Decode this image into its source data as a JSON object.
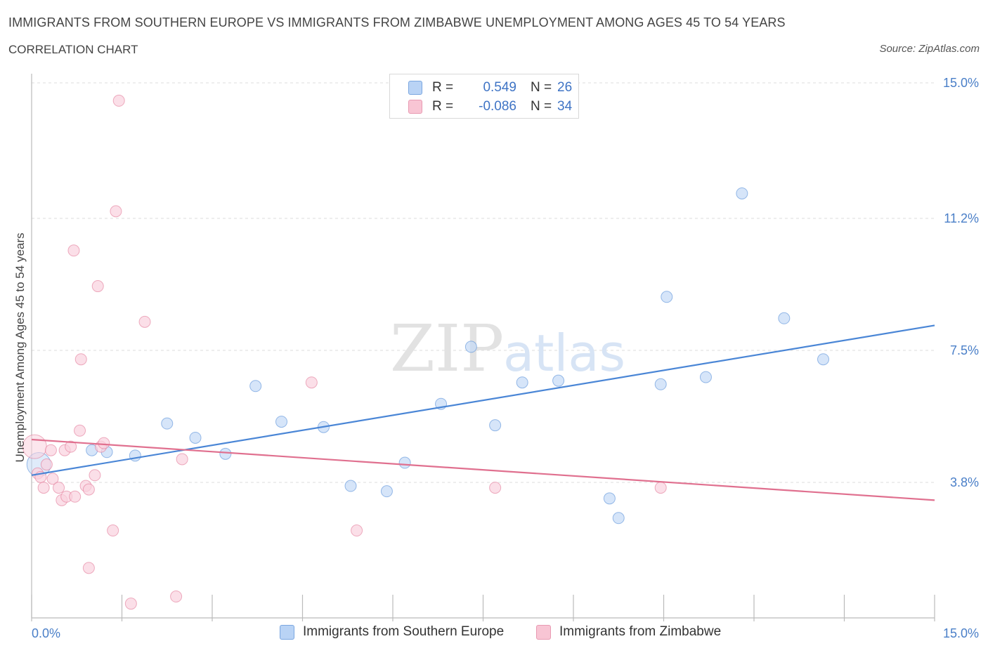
{
  "header": {
    "title": "IMMIGRANTS FROM SOUTHERN EUROPE VS IMMIGRANTS FROM ZIMBABWE UNEMPLOYMENT AMONG AGES 45 TO 54 YEARS",
    "subtitle": "CORRELATION CHART",
    "source": "Source: ZipAtlas.com"
  },
  "legend": {
    "rows": [
      {
        "r_label": "R =",
        "r_value": "0.549",
        "n_label": "N =",
        "n_value": "26",
        "color": "#b9d3f5"
      },
      {
        "r_label": "R =",
        "r_value": "-0.086",
        "n_label": "N =",
        "n_value": "34",
        "color": "#f8c5d4"
      }
    ]
  },
  "bottom_legend": [
    {
      "label": "Immigrants from Southern Europe",
      "color": "#b9d3f5"
    },
    {
      "label": "Immigrants from Zimbabwe",
      "color": "#f8c5d4"
    }
  ],
  "watermark": {
    "zip": "ZIP",
    "atlas": "atlas"
  },
  "chart_data": {
    "type": "scatter",
    "title": "IMMIGRANTS FROM SOUTHERN EUROPE VS IMMIGRANTS FROM ZIMBABWE UNEMPLOYMENT AMONG AGES 45 TO 54 YEARS",
    "xlabel": "",
    "ylabel": "Unemployment Among Ages 45 to 54 years",
    "xlim": [
      0,
      15
    ],
    "ylim": [
      0,
      15
    ],
    "x_tick_labels": [
      {
        "value": 0,
        "label": "0.0%"
      },
      {
        "value": 15,
        "label": "15.0%"
      }
    ],
    "y_tick_labels": [
      {
        "value": 3.8,
        "label": "3.8%"
      },
      {
        "value": 7.5,
        "label": "7.5%"
      },
      {
        "value": 11.2,
        "label": "11.2%"
      },
      {
        "value": 15.0,
        "label": "15.0%"
      }
    ],
    "grid": true,
    "series": [
      {
        "name": "Immigrants from Southern Europe",
        "color": "#4a86d6",
        "fill": "#c5daf6",
        "trend": {
          "x": [
            0,
            15
          ],
          "y": [
            4.0,
            8.2
          ]
        },
        "points": [
          {
            "x": 0.12,
            "y": 4.3,
            "big": true
          },
          {
            "x": 1.0,
            "y": 4.7
          },
          {
            "x": 1.25,
            "y": 4.65
          },
          {
            "x": 1.72,
            "y": 4.55
          },
          {
            "x": 2.25,
            "y": 5.45
          },
          {
            "x": 2.72,
            "y": 5.05
          },
          {
            "x": 3.22,
            "y": 4.6
          },
          {
            "x": 3.72,
            "y": 6.5
          },
          {
            "x": 4.15,
            "y": 5.5
          },
          {
            "x": 4.85,
            "y": 5.35
          },
          {
            "x": 5.3,
            "y": 3.7
          },
          {
            "x": 5.9,
            "y": 3.55
          },
          {
            "x": 6.2,
            "y": 4.35
          },
          {
            "x": 6.8,
            "y": 6.0
          },
          {
            "x": 7.3,
            "y": 7.6
          },
          {
            "x": 7.7,
            "y": 5.4
          },
          {
            "x": 8.15,
            "y": 6.6
          },
          {
            "x": 8.75,
            "y": 6.65
          },
          {
            "x": 9.6,
            "y": 3.35
          },
          {
            "x": 9.75,
            "y": 2.8
          },
          {
            "x": 10.45,
            "y": 6.55
          },
          {
            "x": 10.55,
            "y": 9.0
          },
          {
            "x": 11.2,
            "y": 6.75
          },
          {
            "x": 11.8,
            "y": 11.9
          },
          {
            "x": 12.5,
            "y": 8.4
          },
          {
            "x": 13.15,
            "y": 7.25
          }
        ]
      },
      {
        "name": "Immigrants from Zimbabwe",
        "color": "#e0708f",
        "fill": "#f9d2de",
        "trend": {
          "x": [
            0,
            15
          ],
          "y": [
            5.0,
            3.3
          ]
        },
        "points": [
          {
            "x": 0.05,
            "y": 4.8,
            "big": true
          },
          {
            "x": 0.1,
            "y": 4.05
          },
          {
            "x": 0.15,
            "y": 3.95
          },
          {
            "x": 0.2,
            "y": 3.65
          },
          {
            "x": 0.25,
            "y": 4.3
          },
          {
            "x": 0.32,
            "y": 4.7
          },
          {
            "x": 0.35,
            "y": 3.9
          },
          {
            "x": 0.45,
            "y": 3.65
          },
          {
            "x": 0.5,
            "y": 3.3
          },
          {
            "x": 0.55,
            "y": 4.7
          },
          {
            "x": 0.58,
            "y": 3.4
          },
          {
            "x": 0.65,
            "y": 4.8
          },
          {
            "x": 0.7,
            "y": 10.3
          },
          {
            "x": 0.72,
            "y": 3.4
          },
          {
            "x": 0.8,
            "y": 5.25
          },
          {
            "x": 0.82,
            "y": 7.25
          },
          {
            "x": 0.9,
            "y": 3.7
          },
          {
            "x": 0.95,
            "y": 1.4
          },
          {
            "x": 0.95,
            "y": 3.6
          },
          {
            "x": 1.05,
            "y": 4.0
          },
          {
            "x": 1.1,
            "y": 9.3
          },
          {
            "x": 1.15,
            "y": 4.8
          },
          {
            "x": 1.2,
            "y": 4.9
          },
          {
            "x": 1.35,
            "y": 2.45
          },
          {
            "x": 1.4,
            "y": 11.4
          },
          {
            "x": 1.45,
            "y": 14.5
          },
          {
            "x": 1.65,
            "y": 0.4
          },
          {
            "x": 1.88,
            "y": 8.3
          },
          {
            "x": 2.4,
            "y": 0.6
          },
          {
            "x": 2.5,
            "y": 4.45
          },
          {
            "x": 4.65,
            "y": 6.6
          },
          {
            "x": 5.4,
            "y": 2.45
          },
          {
            "x": 7.7,
            "y": 3.65
          },
          {
            "x": 10.45,
            "y": 3.65
          }
        ]
      }
    ]
  }
}
